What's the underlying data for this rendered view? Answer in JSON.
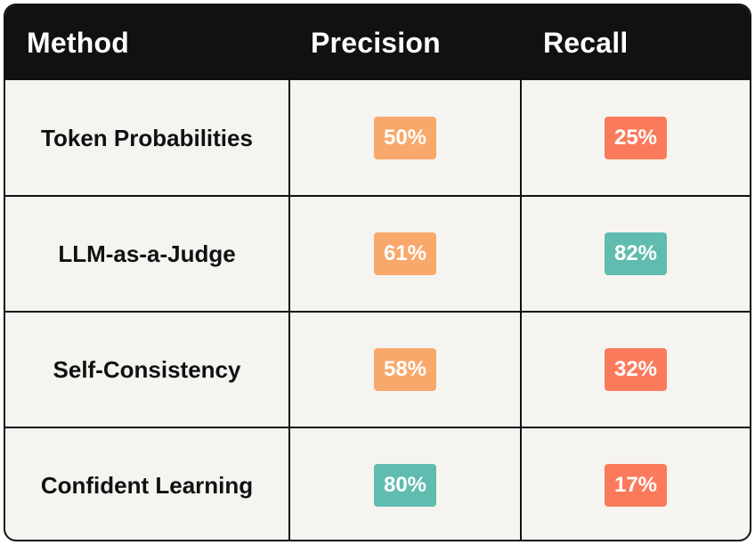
{
  "chart_data": {
    "type": "table",
    "columns": [
      "Method",
      "Precision",
      "Recall"
    ],
    "rows": [
      {
        "method": "Token Probabilities",
        "precision": "50%",
        "recall": "25%",
        "precision_value": 50,
        "recall_value": 25,
        "precision_color": "#f9a86b",
        "recall_color": "#fb7a5c"
      },
      {
        "method": "LLM-as-a-Judge",
        "precision": "61%",
        "recall": "82%",
        "precision_value": 61,
        "recall_value": 82,
        "precision_color": "#f9a86b",
        "recall_color": "#5fbcae"
      },
      {
        "method": "Self-Consistency",
        "precision": "58%",
        "recall": "32%",
        "precision_value": 58,
        "recall_value": 32,
        "precision_color": "#f9a86b",
        "recall_color": "#fb7a5c"
      },
      {
        "method": "Confident Learning",
        "precision": "80%",
        "recall": "17%",
        "precision_value": 80,
        "recall_value": 17,
        "precision_color": "#5fbcae",
        "recall_color": "#fb7a5c"
      }
    ]
  },
  "colors": {
    "header_bg": "#111111",
    "table_bg": "#f5f4f1",
    "orange": "#f9a86b",
    "coral": "#fb7a5c",
    "teal": "#5fbcae"
  }
}
